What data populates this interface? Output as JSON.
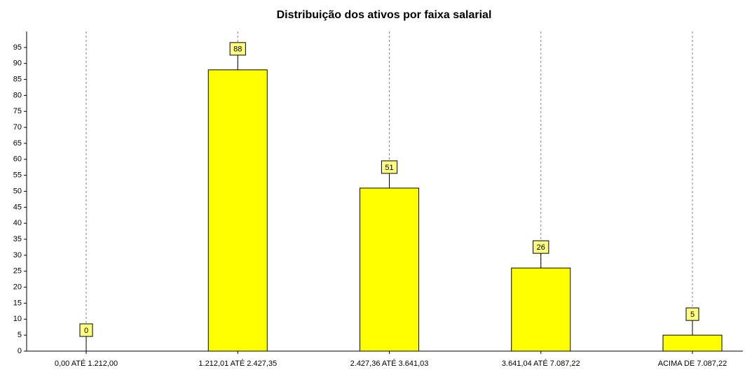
{
  "chart_data": {
    "type": "bar",
    "title": "Distribuição dos ativos por faixa salarial",
    "categories": [
      "0,00 ATÉ 1.212,00",
      "1.212,01 ATÉ 2.427,35",
      "2.427,36 ATÉ 3.641,03",
      "3.641,04 ATÉ 7.087,22",
      "ACIMA DE 7.087,22"
    ],
    "values": [
      0,
      88,
      51,
      26,
      5
    ],
    "color": "#ffff00",
    "ylim": [
      0,
      100
    ],
    "yticks": [
      0,
      5,
      10,
      15,
      20,
      25,
      30,
      35,
      40,
      45,
      50,
      55,
      60,
      65,
      70,
      75,
      80,
      85,
      90,
      95
    ],
    "grid": true,
    "data_labels": true
  }
}
